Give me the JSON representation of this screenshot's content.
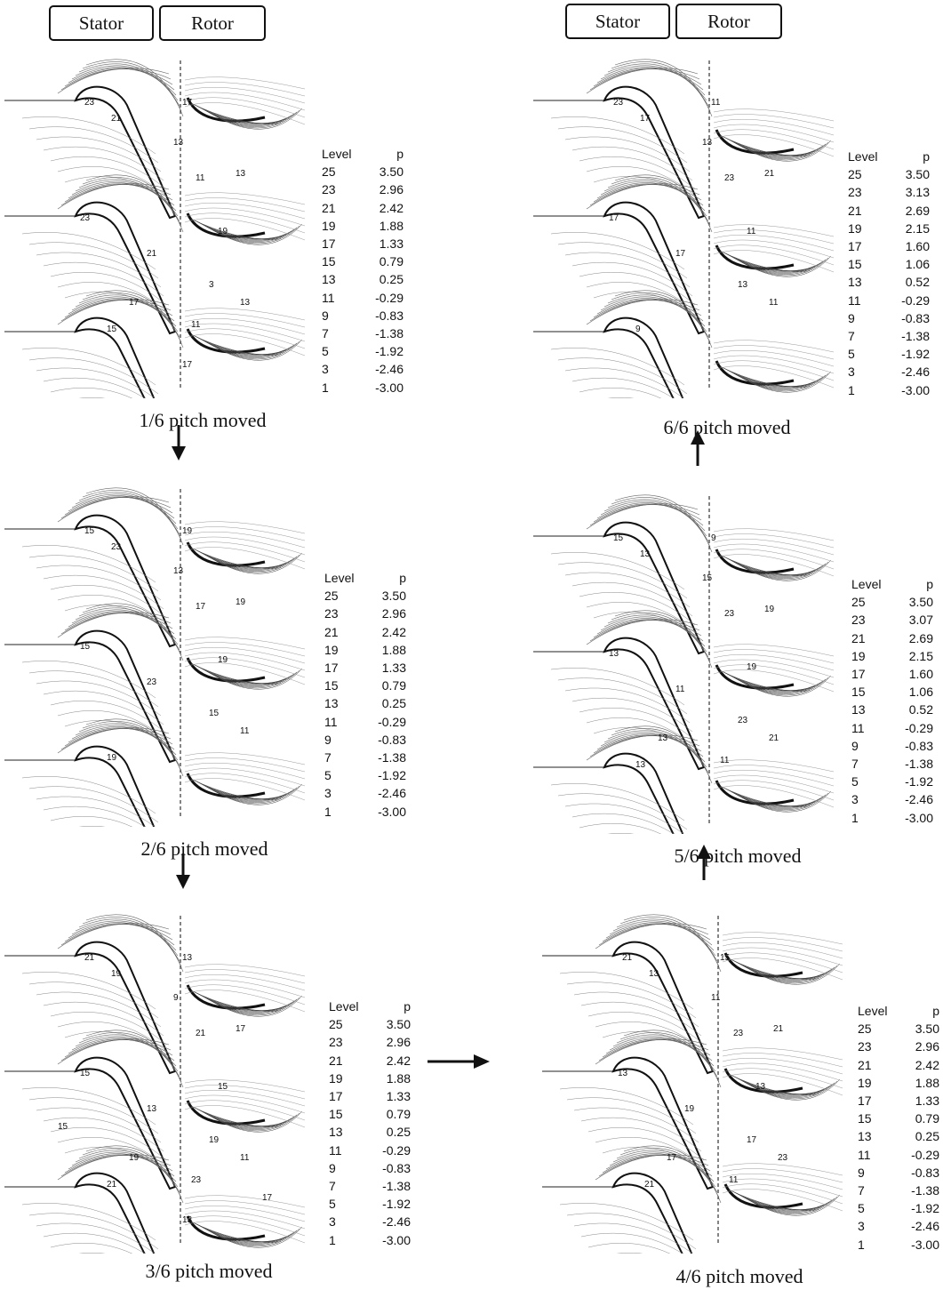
{
  "headers": {
    "stator_label": "Stator",
    "rotor_label": "Rotor"
  },
  "legend_title": {
    "level": "Level",
    "p": "p"
  },
  "panels": [
    {
      "caption": "1/6 pitch moved",
      "legend": [
        {
          "level": "25",
          "p": "3.50"
        },
        {
          "level": "23",
          "p": "2.96"
        },
        {
          "level": "21",
          "p": "2.42"
        },
        {
          "level": "19",
          "p": "1.88"
        },
        {
          "level": "17",
          "p": "1.33"
        },
        {
          "level": "15",
          "p": "0.79"
        },
        {
          "level": "13",
          "p": "0.25"
        },
        {
          "level": "11",
          "p": "-0.29"
        },
        {
          "level": "9",
          "p": "-0.83"
        },
        {
          "level": "7",
          "p": "-1.38"
        },
        {
          "level": "5",
          "p": "-1.92"
        },
        {
          "level": "3",
          "p": "-2.46"
        },
        {
          "level": "1",
          "p": "-3.00"
        }
      ],
      "contour_labels": [
        "23",
        "21",
        "17",
        "13",
        "23",
        "11",
        "13",
        "21",
        "19",
        "3",
        "13",
        "15",
        "17",
        "11",
        "17"
      ]
    },
    {
      "caption": "2/6 pitch moved",
      "legend": [
        {
          "level": "25",
          "p": "3.50"
        },
        {
          "level": "23",
          "p": "2.96"
        },
        {
          "level": "21",
          "p": "2.42"
        },
        {
          "level": "19",
          "p": "1.88"
        },
        {
          "level": "17",
          "p": "1.33"
        },
        {
          "level": "15",
          "p": "0.79"
        },
        {
          "level": "13",
          "p": "0.25"
        },
        {
          "level": "11",
          "p": "-0.29"
        },
        {
          "level": "9",
          "p": "-0.83"
        },
        {
          "level": "7",
          "p": "-1.38"
        },
        {
          "level": "5",
          "p": "-1.92"
        },
        {
          "level": "3",
          "p": "-2.46"
        },
        {
          "level": "1",
          "p": "-3.00"
        }
      ],
      "contour_labels": [
        "15",
        "23",
        "19",
        "13",
        "15",
        "17",
        "19",
        "23",
        "19",
        "15",
        "11",
        "19"
      ]
    },
    {
      "caption": "3/6 pitch moved",
      "legend": [
        {
          "level": "25",
          "p": "3.50"
        },
        {
          "level": "23",
          "p": "2.96"
        },
        {
          "level": "21",
          "p": "2.42"
        },
        {
          "level": "19",
          "p": "1.88"
        },
        {
          "level": "17",
          "p": "1.33"
        },
        {
          "level": "15",
          "p": "0.79"
        },
        {
          "level": "13",
          "p": "0.25"
        },
        {
          "level": "11",
          "p": "-0.29"
        },
        {
          "level": "9",
          "p": "-0.83"
        },
        {
          "level": "7",
          "p": "-1.38"
        },
        {
          "level": "5",
          "p": "-1.92"
        },
        {
          "level": "3",
          "p": "-2.46"
        },
        {
          "level": "1",
          "p": "-3.00"
        }
      ],
      "contour_labels": [
        "21",
        "19",
        "13",
        "9",
        "15",
        "21",
        "17",
        "13",
        "15",
        "19",
        "11",
        "21",
        "19",
        "23",
        "13",
        "15",
        "17"
      ]
    },
    {
      "caption": "4/6 pitch moved",
      "legend": [
        {
          "level": "25",
          "p": "3.50"
        },
        {
          "level": "23",
          "p": "2.96"
        },
        {
          "level": "21",
          "p": "2.42"
        },
        {
          "level": "19",
          "p": "1.88"
        },
        {
          "level": "17",
          "p": "1.33"
        },
        {
          "level": "15",
          "p": "0.79"
        },
        {
          "level": "13",
          "p": "0.25"
        },
        {
          "level": "11",
          "p": "-0.29"
        },
        {
          "level": "9",
          "p": "-0.83"
        },
        {
          "level": "7",
          "p": "-1.38"
        },
        {
          "level": "5",
          "p": "-1.92"
        },
        {
          "level": "3",
          "p": "-2.46"
        },
        {
          "level": "1",
          "p": "-3.00"
        }
      ],
      "contour_labels": [
        "21",
        "13",
        "15",
        "11",
        "13",
        "23",
        "21",
        "19",
        "13",
        "17",
        "23",
        "21",
        "17",
        "11"
      ]
    },
    {
      "caption": "5/6 pitch moved",
      "legend": [
        {
          "level": "25",
          "p": "3.50"
        },
        {
          "level": "23",
          "p": "3.07"
        },
        {
          "level": "21",
          "p": "2.69"
        },
        {
          "level": "19",
          "p": "2.15"
        },
        {
          "level": "17",
          "p": "1.60"
        },
        {
          "level": "15",
          "p": "1.06"
        },
        {
          "level": "13",
          "p": "0.52"
        },
        {
          "level": "11",
          "p": "-0.29"
        },
        {
          "level": "9",
          "p": "-0.83"
        },
        {
          "level": "7",
          "p": "-1.38"
        },
        {
          "level": "5",
          "p": "-1.92"
        },
        {
          "level": "3",
          "p": "-2.46"
        },
        {
          "level": "1",
          "p": "-3.00"
        }
      ],
      "contour_labels": [
        "15",
        "13",
        "9",
        "15",
        "13",
        "23",
        "19",
        "11",
        "19",
        "23",
        "21",
        "13",
        "13",
        "11"
      ]
    },
    {
      "caption": "6/6 pitch moved",
      "legend": [
        {
          "level": "25",
          "p": "3.50"
        },
        {
          "level": "23",
          "p": "3.13"
        },
        {
          "level": "21",
          "p": "2.69"
        },
        {
          "level": "19",
          "p": "2.15"
        },
        {
          "level": "17",
          "p": "1.60"
        },
        {
          "level": "15",
          "p": "1.06"
        },
        {
          "level": "13",
          "p": "0.52"
        },
        {
          "level": "11",
          "p": "-0.29"
        },
        {
          "level": "9",
          "p": "-0.83"
        },
        {
          "level": "7",
          "p": "-1.38"
        },
        {
          "level": "5",
          "p": "-1.92"
        },
        {
          "level": "3",
          "p": "-2.46"
        },
        {
          "level": "1",
          "p": "-3.00"
        }
      ],
      "contour_labels": [
        "23",
        "17",
        "11",
        "13",
        "17",
        "23",
        "21",
        "17",
        "11",
        "13",
        "11",
        "9"
      ]
    }
  ],
  "arrows": [
    "arrow-down",
    "arrow-down",
    "arrow-right",
    "arrow-up",
    "arrow-up"
  ]
}
